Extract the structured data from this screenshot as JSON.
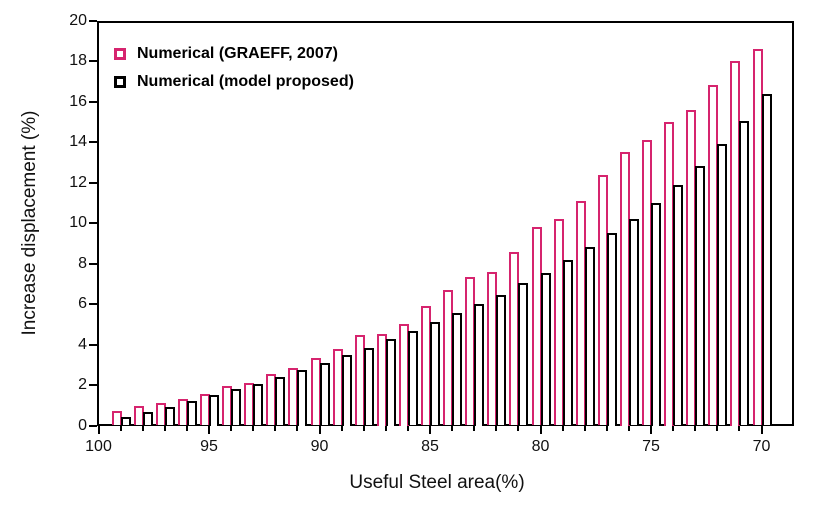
{
  "chart_data": {
    "type": "bar",
    "title": "",
    "xlabel": "Useful Steel area(%)",
    "ylabel": "Increase displacement (%)",
    "x_axis_reversed": true,
    "xlim": [
      100,
      70
    ],
    "ylim": [
      0,
      20
    ],
    "x_major_ticks": [
      100,
      95,
      90,
      85,
      80,
      75,
      70
    ],
    "y_ticks": [
      0,
      2,
      4,
      6,
      8,
      10,
      12,
      14,
      16,
      18,
      20
    ],
    "grid": "off",
    "legend_position": "top-left-inside",
    "bar_style": "hollow-outline",
    "categories": [
      99,
      98,
      97,
      96,
      95,
      94,
      93,
      92,
      91,
      90,
      89,
      88,
      87,
      86,
      85,
      84,
      83,
      82,
      81,
      80,
      79,
      78,
      77,
      76,
      75,
      74,
      73,
      72,
      71,
      70
    ],
    "series": [
      {
        "name": "Numerical (GRAEFF, 2007)",
        "color": "#D6246E",
        "values": [
          0.7,
          0.95,
          1.1,
          1.3,
          1.55,
          1.95,
          2.1,
          2.55,
          2.85,
          3.35,
          3.8,
          4.45,
          4.5,
          5.0,
          5.9,
          6.7,
          7.35,
          7.6,
          8.55,
          9.8,
          10.2,
          11.1,
          12.35,
          13.5,
          14.1,
          15.0,
          15.6,
          16.8,
          18.0,
          18.6
        ]
      },
      {
        "name": "Numerical (model proposed)",
        "color": "#000000",
        "values": [
          0.4,
          0.65,
          0.9,
          1.2,
          1.5,
          1.8,
          2.05,
          2.4,
          2.75,
          3.1,
          3.5,
          3.85,
          4.25,
          4.65,
          5.1,
          5.55,
          6.0,
          6.45,
          7.05,
          7.55,
          8.15,
          8.8,
          9.5,
          10.2,
          11.0,
          11.9,
          12.8,
          13.9,
          15.05,
          16.35
        ]
      }
    ]
  },
  "colors": {
    "axis": "#000000",
    "text": "#111111",
    "background": "#ffffff",
    "series_pink": "#D6246E",
    "series_black": "#000000"
  }
}
